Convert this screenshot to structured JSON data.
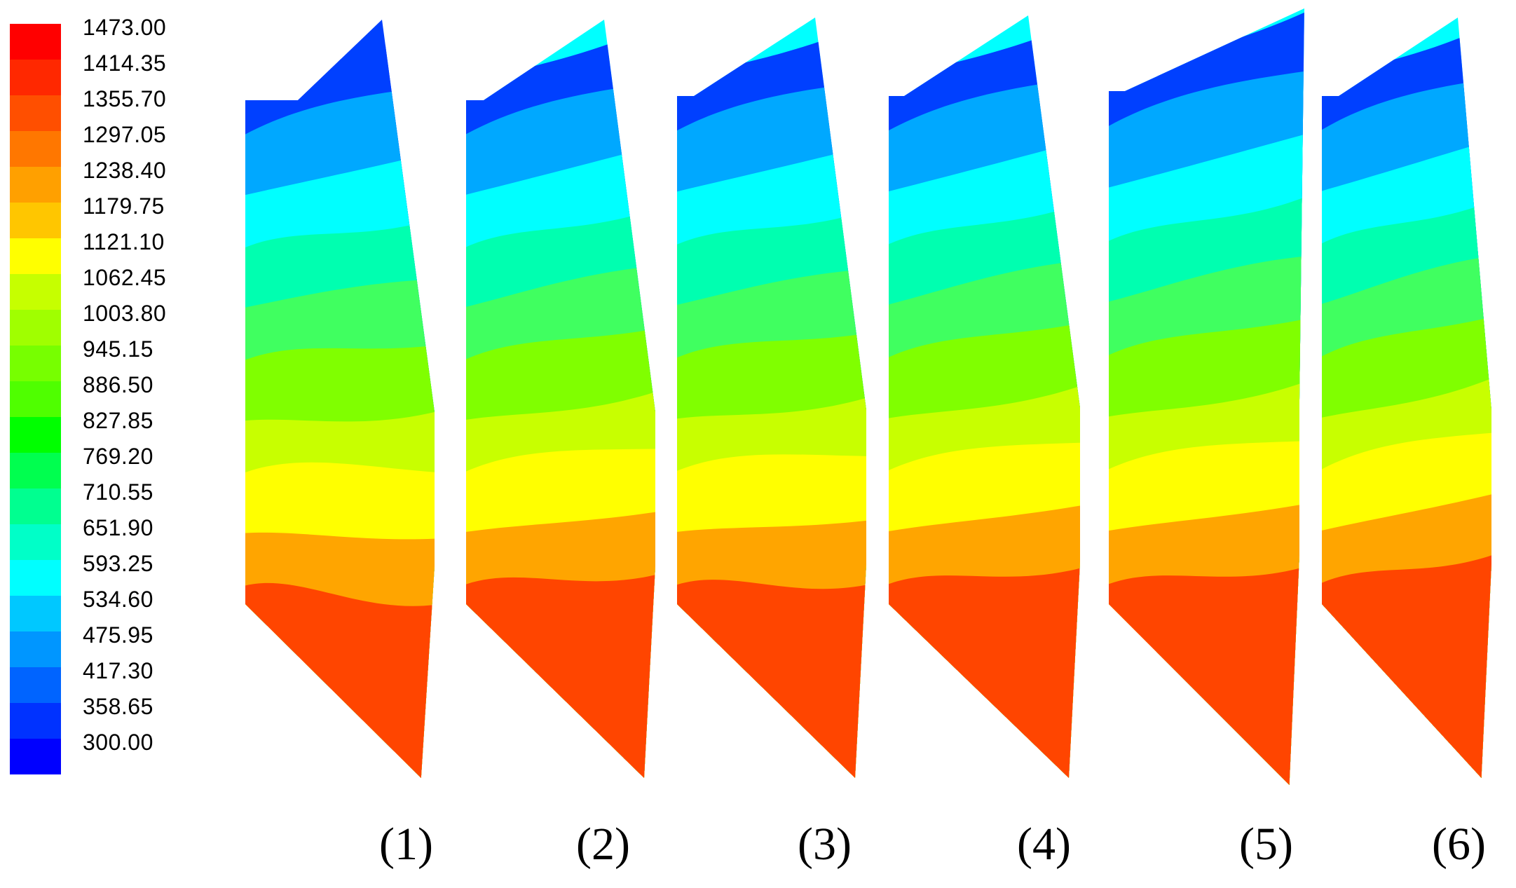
{
  "legend": {
    "ticks": [
      "1473.00",
      "1414.35",
      "1355.70",
      "1297.05",
      "1238.40",
      "1179.75",
      "1121.10",
      "1062.45",
      "1003.80",
      "945.15",
      "886.50",
      "827.85",
      "769.20",
      "710.55",
      "651.90",
      "593.25",
      "534.60",
      "475.95",
      "417.30",
      "358.65",
      "300.00"
    ],
    "colors": [
      "#ff0000",
      "#ff2800",
      "#ff4f00",
      "#ff7700",
      "#ffa000",
      "#ffc600",
      "#ffff00",
      "#c6ff00",
      "#a0ff00",
      "#77ff00",
      "#4fff00",
      "#00ff00",
      "#00ff4f",
      "#00ff90",
      "#00ffc8",
      "#00ffff",
      "#00c8ff",
      "#0096ff",
      "#0064ff",
      "#0032ff",
      "#0000ff"
    ]
  },
  "panels": {
    "labels": [
      "(1)",
      "(2)",
      "(3)",
      "(4)",
      "(5)",
      "(6)"
    ],
    "band_colors_bottom_to_top": [
      "#ff4500",
      "#ffa500",
      "#ffff00",
      "#c8ff00",
      "#80ff00",
      "#40ff60",
      "#00ffb0",
      "#00ffff",
      "#00a8ff",
      "#0040ff"
    ]
  }
}
